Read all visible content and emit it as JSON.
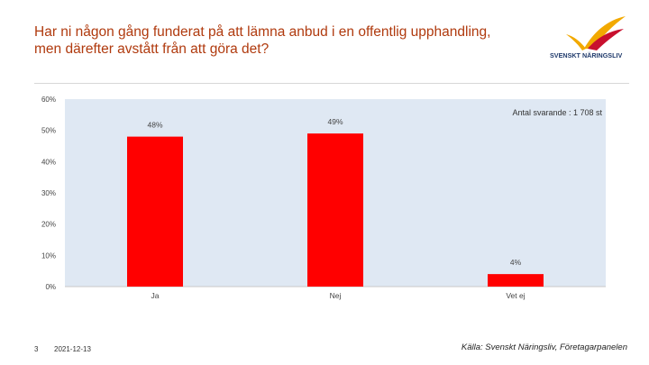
{
  "title": "Har ni någon gång funderat på att lämna anbud i en offentlig upphandling, men därefter avstått från att göra det?",
  "logo": {
    "text": "SVENSKT NÄRINGSLIV",
    "icon": "bird-wings-logo"
  },
  "colors": {
    "title": "#b03a0e",
    "bar": "#ff0000",
    "plot_bg": "#dfe8f3",
    "logo_text": "#1f3a6b",
    "logo_wing_a": "#f2a900",
    "logo_wing_b": "#c8102e"
  },
  "chart_data": {
    "type": "bar",
    "categories": [
      "Ja",
      "Nej",
      "Vet ej"
    ],
    "values": [
      48,
      49,
      4
    ],
    "data_labels": [
      "48%",
      "49%",
      "4%"
    ],
    "ylim": [
      0,
      60
    ],
    "yticks": [
      "0%",
      "10%",
      "20%",
      "30%",
      "40%",
      "50%",
      "60%"
    ],
    "annotation": "Antal svarande : 1 708 st",
    "grid": false
  },
  "footer": {
    "page_number": "3",
    "date": "2021-12-13",
    "source": "Källa: Svenskt Näringsliv, Företagarpanelen"
  }
}
